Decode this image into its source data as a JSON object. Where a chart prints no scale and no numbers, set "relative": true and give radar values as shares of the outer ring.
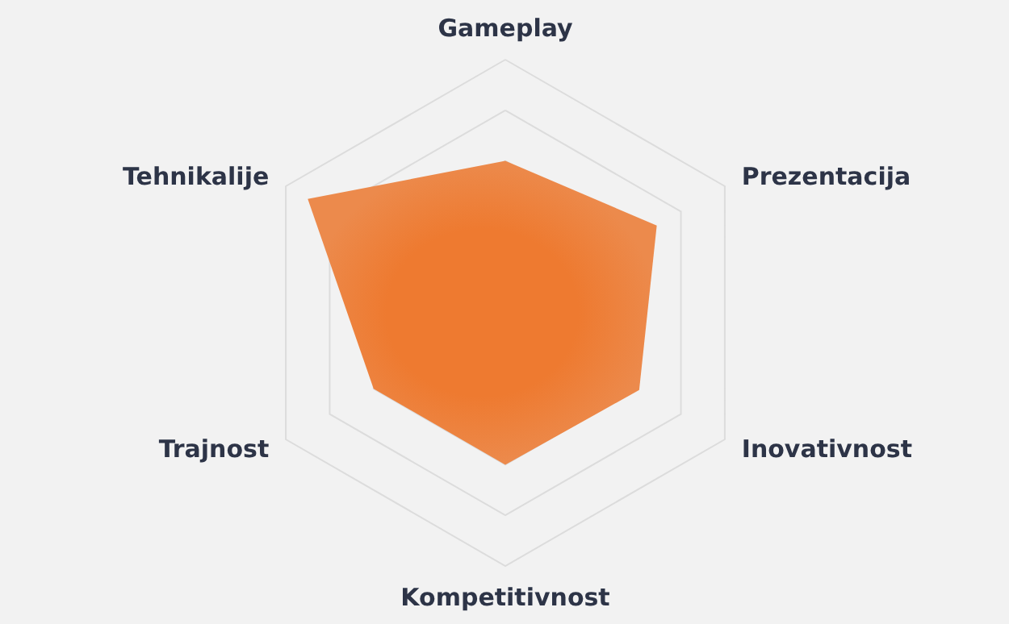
{
  "chart_data": {
    "type": "radar",
    "relative": true,
    "categories": [
      "Gameplay",
      "Prezentacija",
      "Inovativnost",
      "Kompetitivnost",
      "Trajnost",
      "Tehnikalije"
    ],
    "series": [
      {
        "color": "#ec8a4c",
        "values": [
          0.6,
          0.69,
          0.61,
          0.6,
          0.6,
          0.9
        ]
      }
    ]
  }
}
